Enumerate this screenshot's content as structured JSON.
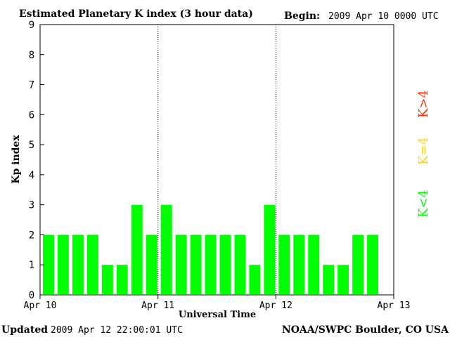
{
  "header": {
    "title": "Estimated Planetary K index (3 hour data)",
    "begin_label": "Begin:",
    "begin_value": "2009 Apr 10 0000 UTC"
  },
  "footer": {
    "updated_label": "Updated",
    "updated_value": "2009 Apr 12 22:00:01 UTC",
    "source": "NOAA/SWPC Boulder, CO USA"
  },
  "legend": {
    "items": [
      {
        "label": "K<4",
        "color": "#00ff00"
      },
      {
        "label": "K=4",
        "color": "#ffd700"
      },
      {
        "label": "K>4",
        "color": "#ff3300"
      }
    ]
  },
  "chart_data": {
    "type": "bar",
    "title": "Estimated Planetary K index (3 hour data)",
    "xlabel": "Universal Time",
    "ylabel": "Kp index",
    "ylim": [
      0,
      9
    ],
    "yticks": [
      0,
      1,
      2,
      3,
      4,
      5,
      6,
      7,
      8,
      9
    ],
    "xticks": [
      "Apr 10",
      "Apr 11",
      "Apr 12",
      "Apr 13"
    ],
    "day_separators": [
      "Apr 11",
      "Apr 12"
    ],
    "bar_color": "#00ff00",
    "values": [
      2,
      2,
      2,
      2,
      1,
      1,
      3,
      2,
      3,
      2,
      2,
      2,
      2,
      2,
      1,
      3,
      2,
      2,
      2,
      1,
      1,
      2,
      2
    ],
    "grid": false
  }
}
